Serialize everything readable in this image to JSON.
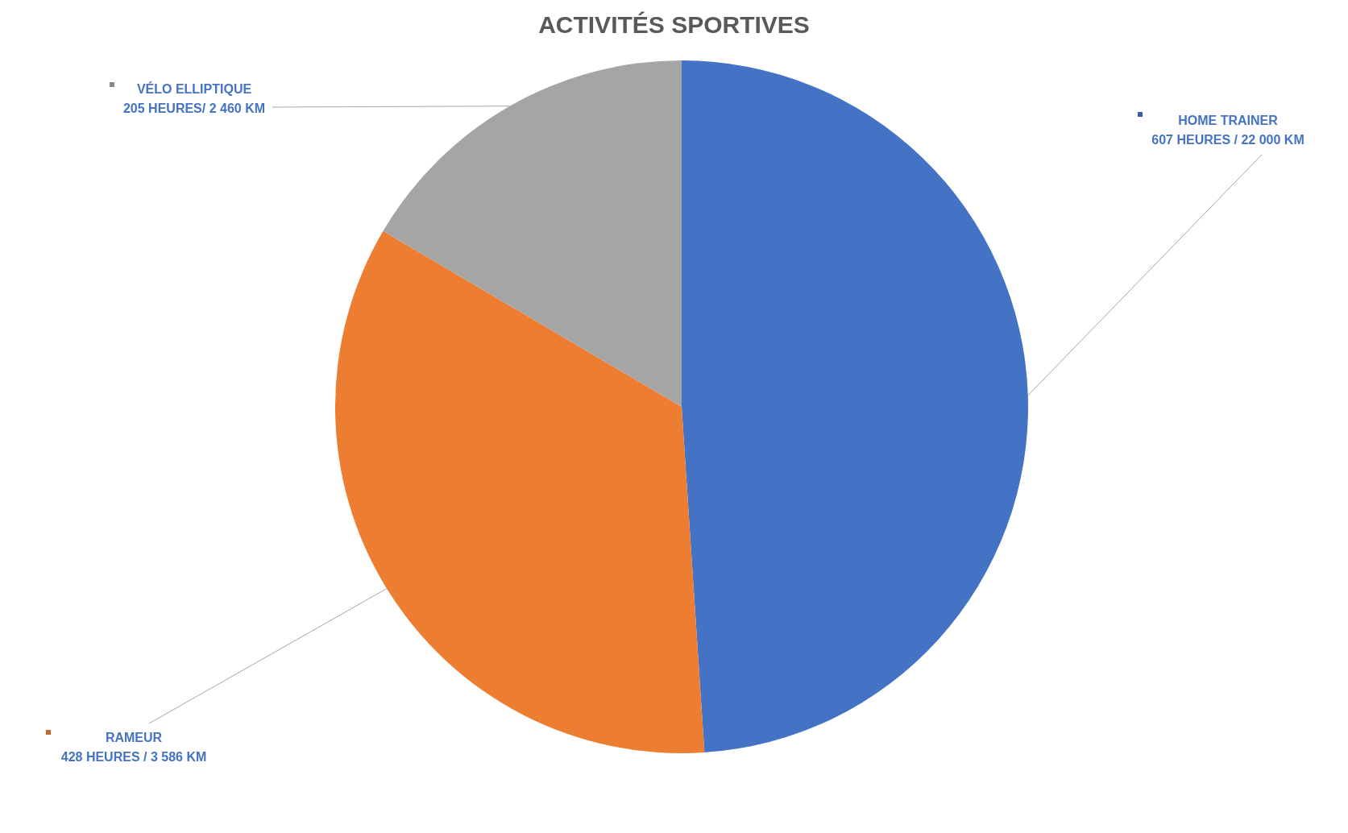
{
  "chart_data": {
    "type": "pie",
    "title": "ACTIVITÉS SPORTIVES",
    "categories": [
      "HOME TRAINER",
      "RAMEUR",
      "VÉLO ELLIPTIQUE"
    ],
    "values": [
      607,
      428,
      205
    ],
    "value_labels": [
      "607 HEURES / 22 000 KM",
      "428 HEURES / 3 586 KM",
      "205 HEURES/ 2 460 KM"
    ],
    "colors": [
      "#4472c4",
      "#ed7d31",
      "#a5a5a5"
    ]
  }
}
